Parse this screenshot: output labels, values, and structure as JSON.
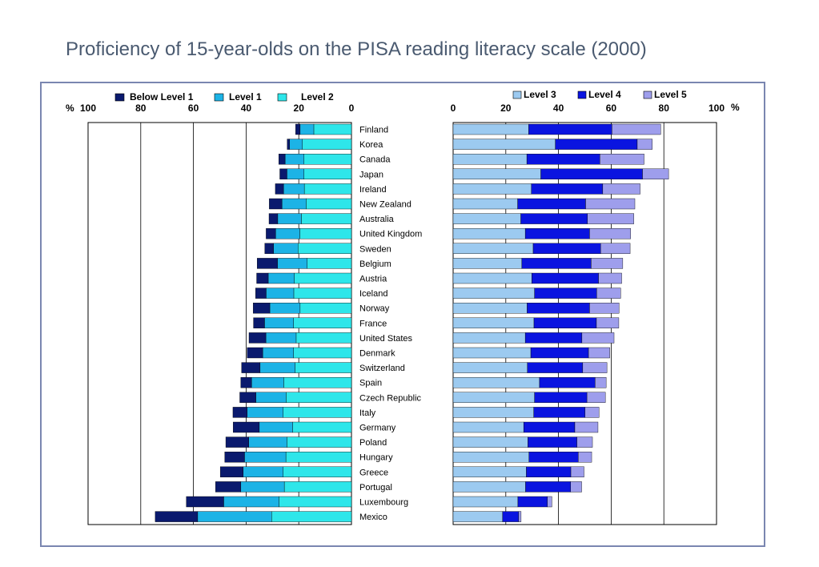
{
  "title": "Proficiency of 15-year-olds on the PISA reading literacy scale (2000)",
  "colors": {
    "below_level_1": "#0a1a6e",
    "level_1": "#1cb3e6",
    "level_2": "#2ee6ea",
    "level_3": "#9ccaf0",
    "level_4": "#0a14e0",
    "level_5": "#9e9eec",
    "frame": "#7a86b0"
  },
  "chart_data": [
    {
      "type": "bar",
      "orientation": "horizontal",
      "stacked": true,
      "direction": "leftward",
      "axis_unit": "%",
      "xlim": [
        0,
        100
      ],
      "tick_labels": [
        "100",
        "80",
        "60",
        "40",
        "20",
        "0"
      ],
      "tick_values": [
        100,
        80,
        60,
        40,
        20,
        0
      ],
      "grid": true,
      "legend_position": "top",
      "categories": [
        "Finland",
        "Korea",
        "Canada",
        "Japan",
        "Ireland",
        "New Zealand",
        "Australia",
        "United Kingdom",
        "Sweden",
        "Belgium",
        "Austria",
        "Iceland",
        "Norway",
        "France",
        "United States",
        "Denmark",
        "Switzerland",
        "Spain",
        "Czech Republic",
        "Italy",
        "Germany",
        "Poland",
        "Hungary",
        "Greece",
        "Portugal",
        "Luxembourg",
        "Mexico"
      ],
      "series": [
        {
          "name": "Level 2",
          "color_key": "level_2",
          "values": [
            14.3,
            18.6,
            18.0,
            18.0,
            17.9,
            17.2,
            19.0,
            19.6,
            20.3,
            16.8,
            21.7,
            21.9,
            19.5,
            22.0,
            21.0,
            22.0,
            21.4,
            25.7,
            24.8,
            25.9,
            22.3,
            24.5,
            24.9,
            25.9,
            25.5,
            27.5,
            30.3
          ]
        },
        {
          "name": "Level 1",
          "color_key": "level_1",
          "values": [
            5.2,
            4.9,
            7.2,
            6.5,
            7.9,
            9.2,
            9.0,
            9.2,
            9.3,
            11.3,
            9.9,
            10.5,
            11.5,
            11.0,
            11.5,
            11.7,
            13.3,
            12.2,
            11.5,
            13.7,
            12.7,
            14.5,
            15.7,
            15.2,
            16.5,
            21.0,
            28.1
          ]
        },
        {
          "name": "Below Level 1",
          "color_key": "below_level_1",
          "values": [
            1.7,
            0.9,
            2.4,
            2.7,
            3.1,
            4.8,
            3.3,
            3.6,
            3.3,
            7.7,
            4.4,
            4.0,
            6.3,
            4.2,
            6.4,
            5.9,
            7.0,
            4.1,
            6.1,
            5.4,
            9.9,
            8.7,
            7.5,
            8.7,
            9.6,
            14.2,
            16.1
          ]
        }
      ]
    },
    {
      "type": "bar",
      "orientation": "horizontal",
      "stacked": true,
      "direction": "rightward",
      "axis_unit": "%",
      "xlim": [
        0,
        100
      ],
      "tick_labels": [
        "0",
        "20",
        "40",
        "60",
        "80",
        "100"
      ],
      "tick_values": [
        0,
        20,
        40,
        60,
        80,
        100
      ],
      "grid": true,
      "legend_position": "top",
      "categories": [
        "Finland",
        "Korea",
        "Canada",
        "Japan",
        "Ireland",
        "New Zealand",
        "Australia",
        "United Kingdom",
        "Sweden",
        "Belgium",
        "Austria",
        "Iceland",
        "Norway",
        "France",
        "United States",
        "Denmark",
        "Switzerland",
        "Spain",
        "Czech Republic",
        "Italy",
        "Germany",
        "Poland",
        "Hungary",
        "Greece",
        "Portugal",
        "Luxembourg",
        "Mexico"
      ],
      "series": [
        {
          "name": "Level 3",
          "color_key": "level_3",
          "values": [
            28.7,
            38.8,
            28.0,
            33.3,
            29.7,
            24.5,
            25.7,
            27.4,
            30.4,
            26.1,
            29.9,
            30.9,
            28.1,
            30.7,
            27.4,
            29.5,
            28.2,
            32.8,
            30.9,
            30.6,
            26.8,
            28.4,
            28.8,
            27.8,
            27.5,
            24.6,
            18.8
          ]
        },
        {
          "name": "Level 4",
          "color_key": "level_4",
          "values": [
            31.6,
            31.1,
            27.7,
            38.6,
            27.1,
            25.8,
            25.3,
            24.4,
            25.6,
            26.3,
            25.3,
            23.6,
            23.7,
            23.7,
            21.5,
            21.9,
            21.0,
            21.1,
            19.9,
            19.5,
            19.4,
            18.6,
            18.7,
            16.9,
            17.1,
            11.2,
            6.1
          ]
        },
        {
          "name": "Level 5",
          "color_key": "level_5",
          "values": [
            18.5,
            5.7,
            16.8,
            9.9,
            14.2,
            18.7,
            17.6,
            15.6,
            11.2,
            12.0,
            8.8,
            9.1,
            11.2,
            8.5,
            12.2,
            8.1,
            9.2,
            4.2,
            7.0,
            5.3,
            8.8,
            5.9,
            5.1,
            5.0,
            4.2,
            1.7,
            0.9
          ]
        }
      ]
    }
  ]
}
